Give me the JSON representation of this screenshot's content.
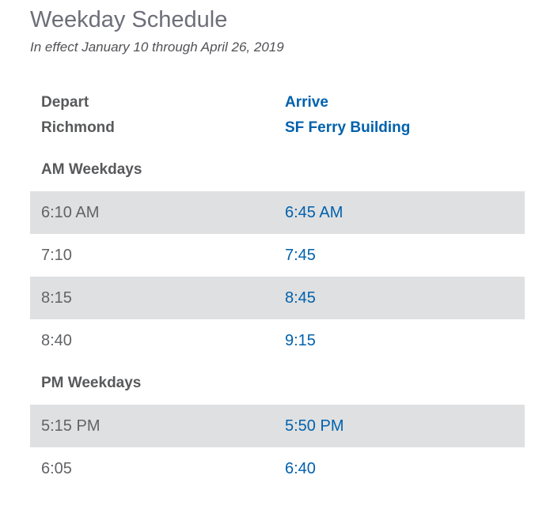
{
  "page": {
    "title": "Weekday Schedule",
    "subtitle": "In effect January 10 through April 26, 2019"
  },
  "table": {
    "depart_header": "Depart",
    "depart_location": "Richmond",
    "arrive_header": "Arrive",
    "arrive_location": "SF Ferry Building",
    "sections": [
      {
        "label": "AM Weekdays",
        "rows": [
          {
            "depart": "6:10 AM",
            "arrive": "6:45 AM"
          },
          {
            "depart": "7:10",
            "arrive": "7:45"
          },
          {
            "depart": "8:15",
            "arrive": "8:45"
          },
          {
            "depart": "8:40",
            "arrive": "9:15"
          }
        ]
      },
      {
        "label": "PM Weekdays",
        "rows": [
          {
            "depart": "5:15 PM",
            "arrive": "5:50 PM"
          },
          {
            "depart": "6:05",
            "arrive": "6:40"
          }
        ]
      }
    ]
  },
  "colors": {
    "title_gray": "#6d6e78",
    "text_gray": "#58595b",
    "accent_blue": "#0061ad",
    "stripe_gray": "#dfe0e1"
  }
}
